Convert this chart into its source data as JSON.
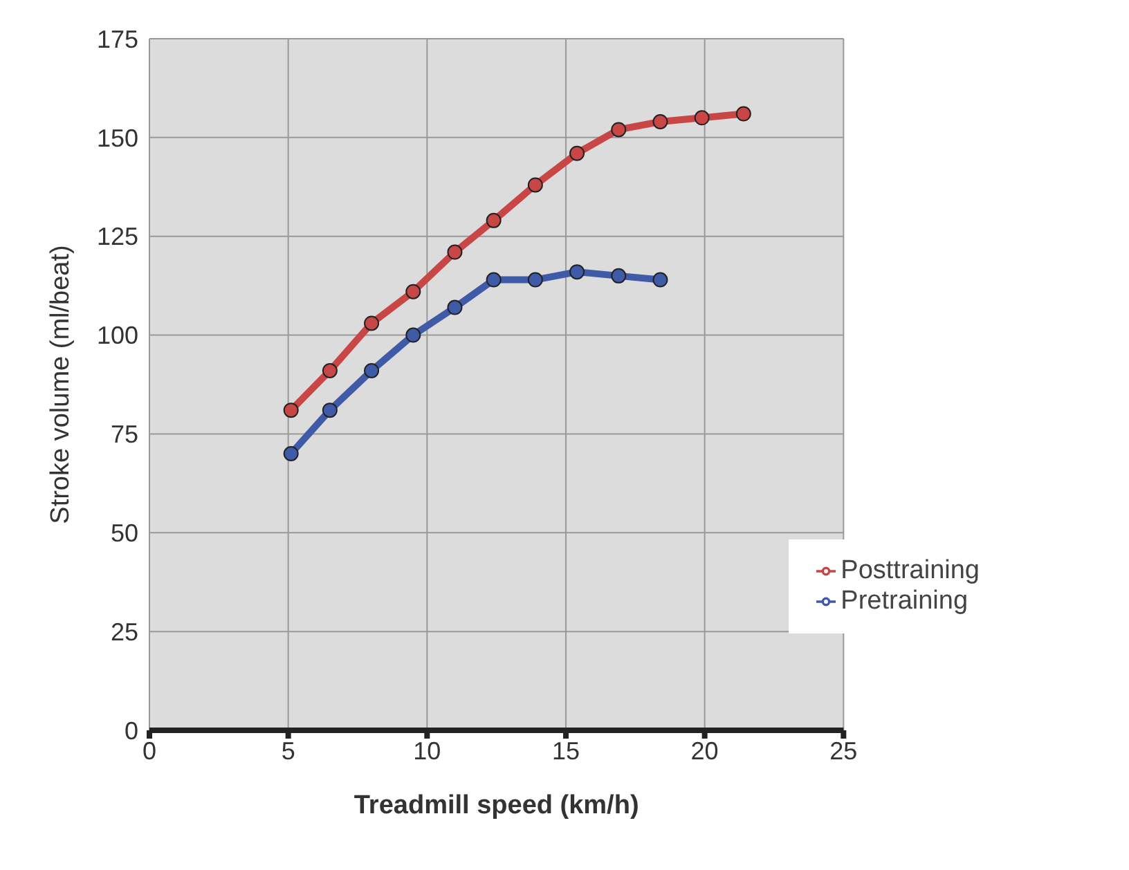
{
  "chart_data": {
    "type": "line",
    "xlabel": "Treadmill speed (km/h)",
    "ylabel": "Stroke volume (ml/beat)",
    "xlim": [
      0,
      25
    ],
    "xticks": [
      0,
      5,
      10,
      15,
      20,
      25
    ],
    "ylim": [
      0,
      175
    ],
    "yticks": [
      0,
      25,
      50,
      75,
      100,
      125,
      150,
      175
    ],
    "grid": true,
    "legend": "bottom right",
    "marker": "circle",
    "line_style": "solid",
    "series": [
      {
        "name": "Pretraining",
        "color": "#3f5aa6",
        "x": [
          5.1,
          6.5,
          8.0,
          9.5,
          11.0,
          12.4,
          13.9,
          15.4,
          16.9,
          18.4
        ],
        "values": [
          70,
          81,
          91,
          100,
          107,
          114,
          114,
          116,
          115,
          114
        ]
      },
      {
        "name": "Posttraining",
        "color": "#c84646",
        "x": [
          5.1,
          6.5,
          8.0,
          9.5,
          11.0,
          12.4,
          13.9,
          15.4,
          16.9,
          18.4,
          19.9,
          21.4
        ],
        "values": [
          81,
          91,
          103,
          111,
          121,
          129,
          138,
          146,
          152,
          154,
          155,
          156
        ]
      }
    ]
  }
}
